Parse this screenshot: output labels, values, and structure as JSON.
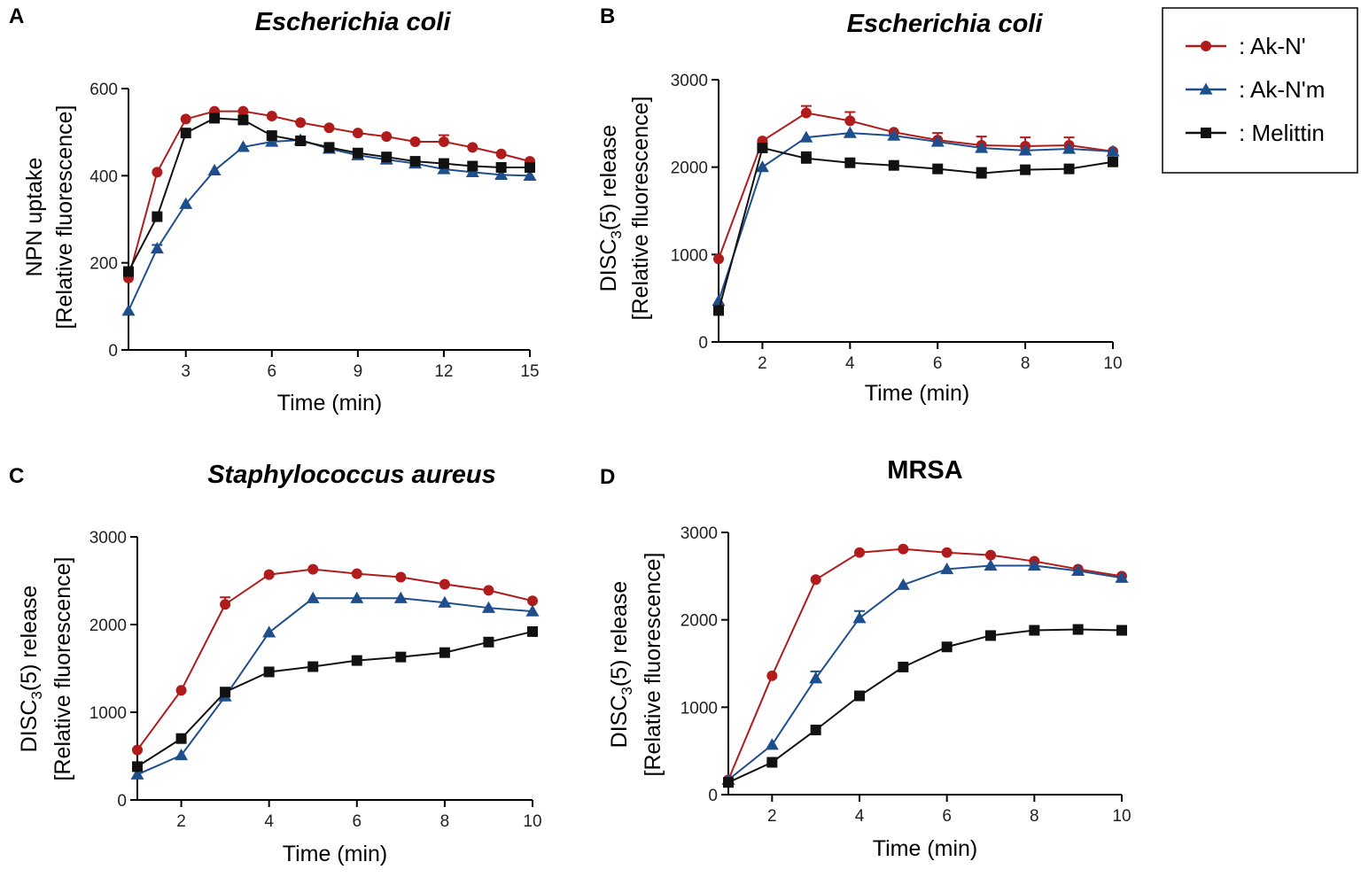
{
  "legend": {
    "entries": [
      {
        "label": ": Ak-N'",
        "color": "#b01c1c",
        "marker": "circle"
      },
      {
        "label": ": Ak-N'm",
        "color": "#1f4e8c",
        "marker": "triangle"
      },
      {
        "label": ": Melittin",
        "color": "#111111",
        "marker": "square"
      }
    ]
  },
  "chart_data": [
    {
      "panel": "A",
      "type": "line",
      "title": "Escherichia coli",
      "title_italic": true,
      "xlabel": "Time (min)",
      "ylabel": [
        "NPN uptake",
        "[Relative fluorescence]"
      ],
      "xlim": [
        1,
        15
      ],
      "ylim": [
        0,
        600
      ],
      "xticks": [
        3,
        6,
        9,
        12,
        15
      ],
      "yticks": [
        0,
        200,
        400,
        600
      ],
      "x": [
        1,
        2,
        3,
        4,
        5,
        6,
        7,
        8,
        9,
        10,
        11,
        12,
        13,
        14,
        15
      ],
      "series": [
        {
          "name": "Ak-N'",
          "color": "#b01c1c",
          "marker": "circle",
          "values": [
            165,
            408,
            530,
            548,
            548,
            537,
            522,
            510,
            498,
            490,
            478,
            478,
            465,
            450,
            433
          ],
          "errors": [
            0,
            0,
            0,
            0,
            0,
            0,
            0,
            0,
            0,
            0,
            0,
            15,
            0,
            0,
            0
          ]
        },
        {
          "name": "Ak-N'm",
          "color": "#1f4e8c",
          "marker": "triangle",
          "values": [
            90,
            233,
            335,
            412,
            466,
            478,
            482,
            462,
            447,
            437,
            428,
            415,
            408,
            402,
            400
          ],
          "errors": [
            0,
            8,
            0,
            0,
            0,
            0,
            0,
            0,
            0,
            0,
            0,
            0,
            0,
            0,
            0
          ]
        },
        {
          "name": "Melittin",
          "color": "#111111",
          "marker": "square",
          "values": [
            180,
            306,
            498,
            532,
            528,
            492,
            480,
            465,
            452,
            443,
            433,
            428,
            422,
            419,
            419
          ],
          "errors": [
            0,
            0,
            0,
            0,
            0,
            0,
            0,
            0,
            0,
            0,
            0,
            0,
            0,
            0,
            0
          ]
        }
      ]
    },
    {
      "panel": "B",
      "type": "line",
      "title": "Escherichia coli",
      "title_italic": true,
      "xlabel": "Time (min)",
      "ylabel": [
        "DISC3(5) release",
        "[Relative fluorescence]"
      ],
      "xlim": [
        1,
        10
      ],
      "ylim": [
        0,
        3000
      ],
      "xticks": [
        2,
        4,
        6,
        8,
        10
      ],
      "yticks": [
        0,
        1000,
        2000,
        3000
      ],
      "x": [
        1,
        2,
        3,
        4,
        5,
        6,
        7,
        8,
        9,
        10
      ],
      "series": [
        {
          "name": "Ak-N'",
          "color": "#b01c1c",
          "marker": "circle",
          "values": [
            950,
            2300,
            2620,
            2530,
            2400,
            2310,
            2250,
            2240,
            2250,
            2180
          ],
          "errors": [
            0,
            0,
            80,
            100,
            0,
            80,
            100,
            100,
            90,
            0
          ]
        },
        {
          "name": "Ak-N'm",
          "color": "#1f4e8c",
          "marker": "triangle",
          "values": [
            470,
            2000,
            2340,
            2390,
            2360,
            2290,
            2220,
            2190,
            2210,
            2180
          ],
          "errors": [
            0,
            0,
            0,
            0,
            0,
            0,
            0,
            0,
            0,
            0
          ]
        },
        {
          "name": "Melittin",
          "color": "#111111",
          "marker": "square",
          "values": [
            360,
            2220,
            2100,
            2050,
            2020,
            1980,
            1930,
            1970,
            1980,
            2060
          ],
          "errors": [
            0,
            0,
            70,
            0,
            0,
            0,
            60,
            0,
            0,
            0
          ]
        }
      ]
    },
    {
      "panel": "C",
      "type": "line",
      "title": "Staphylococcus aureus",
      "title_italic": true,
      "xlabel": "Time (min)",
      "ylabel": [
        "DISC3(5) release",
        "[Relative fluorescence]"
      ],
      "xlim": [
        1,
        10
      ],
      "ylim": [
        0,
        3000
      ],
      "xticks": [
        2,
        4,
        6,
        8,
        10
      ],
      "yticks": [
        0,
        1000,
        2000,
        3000
      ],
      "x": [
        1,
        2,
        3,
        4,
        5,
        6,
        7,
        8,
        9,
        10
      ],
      "series": [
        {
          "name": "Ak-N'",
          "color": "#b01c1c",
          "marker": "circle",
          "values": [
            570,
            1250,
            2230,
            2570,
            2630,
            2580,
            2540,
            2460,
            2390,
            2270
          ],
          "errors": [
            0,
            0,
            80,
            0,
            0,
            0,
            0,
            0,
            0,
            0
          ]
        },
        {
          "name": "Ak-N'm",
          "color": "#1f4e8c",
          "marker": "triangle",
          "values": [
            290,
            510,
            1180,
            1910,
            2300,
            2300,
            2300,
            2250,
            2190,
            2150
          ],
          "errors": [
            0,
            0,
            0,
            0,
            0,
            0,
            0,
            0,
            0,
            0
          ]
        },
        {
          "name": "Melittin",
          "color": "#111111",
          "marker": "square",
          "values": [
            380,
            700,
            1230,
            1460,
            1520,
            1590,
            1630,
            1680,
            1800,
            1920
          ],
          "errors": [
            0,
            0,
            0,
            0,
            0,
            0,
            0,
            0,
            0,
            0
          ]
        }
      ]
    },
    {
      "panel": "D",
      "type": "line",
      "title": "MRSA",
      "title_italic": false,
      "xlabel": "Time (min)",
      "ylabel": [
        "DISC3(5) release",
        "[Relative fluorescence]"
      ],
      "xlim": [
        1,
        10
      ],
      "ylim": [
        0,
        3000
      ],
      "xticks": [
        2,
        4,
        6,
        8,
        10
      ],
      "yticks": [
        0,
        1000,
        2000,
        3000
      ],
      "x": [
        1,
        2,
        3,
        4,
        5,
        6,
        7,
        8,
        9,
        10
      ],
      "series": [
        {
          "name": "Ak-N'",
          "color": "#b01c1c",
          "marker": "circle",
          "values": [
            170,
            1360,
            2460,
            2770,
            2810,
            2770,
            2740,
            2670,
            2580,
            2500
          ],
          "errors": [
            0,
            0,
            0,
            0,
            0,
            0,
            0,
            0,
            0,
            0
          ]
        },
        {
          "name": "Ak-N'm",
          "color": "#1f4e8c",
          "marker": "triangle",
          "values": [
            170,
            570,
            1330,
            2020,
            2400,
            2580,
            2620,
            2620,
            2560,
            2480
          ],
          "errors": [
            0,
            0,
            80,
            80,
            0,
            0,
            0,
            0,
            0,
            0
          ]
        },
        {
          "name": "Melittin",
          "color": "#111111",
          "marker": "square",
          "values": [
            140,
            370,
            740,
            1130,
            1460,
            1690,
            1820,
            1880,
            1890,
            1880
          ],
          "errors": [
            0,
            0,
            0,
            0,
            0,
            0,
            0,
            0,
            0,
            0
          ]
        }
      ]
    }
  ]
}
